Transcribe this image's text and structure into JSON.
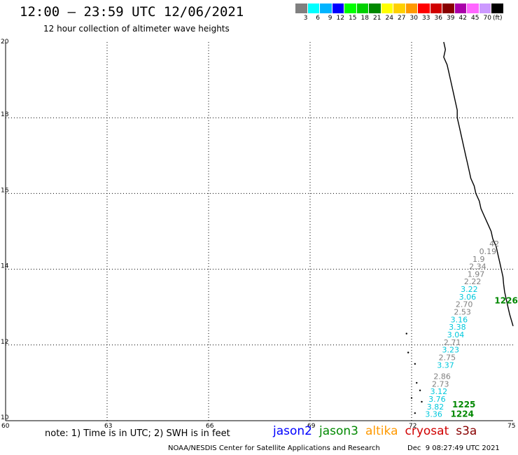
{
  "header": {
    "title": "12:00 – 23:59 UTC 12/06/2021",
    "subtitle": "12 hour collection of altimeter wave heights"
  },
  "colorbar": {
    "colors": [
      "#808080",
      "#00ffff",
      "#00b4ff",
      "#0000ff",
      "#00ff00",
      "#00d000",
      "#008800",
      "#ffff00",
      "#ffd000",
      "#ff9900",
      "#ff0000",
      "#d00000",
      "#880000",
      "#aa00aa",
      "#ff66ff",
      "#cc99ff",
      "#000000"
    ],
    "labels": [
      "3",
      "6",
      "9",
      "12",
      "15",
      "18",
      "21",
      "24",
      "27",
      "30",
      "33",
      "36",
      "39",
      "42",
      "45",
      "70"
    ],
    "unit": "(ft)"
  },
  "map": {
    "lon_ticks": [
      "60",
      "63",
      "66",
      "69",
      "72",
      "75"
    ],
    "lat_ticks": [
      "20",
      "18",
      "16",
      "14",
      "12",
      "10"
    ],
    "grid": "dotted",
    "wave_labels": [
      {
        "text": "42",
        "lon": 74.3,
        "lat": 14.6,
        "color": "#808080"
      },
      {
        "text": "0.19",
        "lon": 74.0,
        "lat": 14.4,
        "color": "#808080"
      },
      {
        "text": "1.9",
        "lon": 73.8,
        "lat": 14.2,
        "color": "#808080"
      },
      {
        "text": "2.34",
        "lon": 73.7,
        "lat": 14.0,
        "color": "#808080"
      },
      {
        "text": "1.97",
        "lon": 73.65,
        "lat": 13.8,
        "color": "#808080"
      },
      {
        "text": "2.22",
        "lon": 73.55,
        "lat": 13.6,
        "color": "#808080"
      },
      {
        "text": "3.22",
        "lon": 73.45,
        "lat": 13.4,
        "color": "#00c8dc"
      },
      {
        "text": "3.06",
        "lon": 73.4,
        "lat": 13.2,
        "color": "#00c8dc"
      },
      {
        "text": "2.70",
        "lon": 73.3,
        "lat": 13.0,
        "color": "#808080"
      },
      {
        "text": "2.53",
        "lon": 73.25,
        "lat": 12.8,
        "color": "#808080"
      },
      {
        "text": "3.16",
        "lon": 73.15,
        "lat": 12.6,
        "color": "#00c8dc"
      },
      {
        "text": "3.38",
        "lon": 73.1,
        "lat": 12.4,
        "color": "#00c8dc"
      },
      {
        "text": "3.04",
        "lon": 73.05,
        "lat": 12.2,
        "color": "#00c8dc"
      },
      {
        "text": "2.71",
        "lon": 72.95,
        "lat": 12.0,
        "color": "#808080"
      },
      {
        "text": "3.23",
        "lon": 72.9,
        "lat": 11.8,
        "color": "#00c8dc"
      },
      {
        "text": "2.75",
        "lon": 72.8,
        "lat": 11.6,
        "color": "#808080"
      },
      {
        "text": "3.37",
        "lon": 72.75,
        "lat": 11.4,
        "color": "#00c8dc"
      },
      {
        "text": "2.86",
        "lon": 72.65,
        "lat": 11.1,
        "color": "#808080"
      },
      {
        "text": "2.73",
        "lon": 72.6,
        "lat": 10.9,
        "color": "#808080"
      },
      {
        "text": "3.12",
        "lon": 72.55,
        "lat": 10.7,
        "color": "#00c8dc"
      },
      {
        "text": "3.76",
        "lon": 72.5,
        "lat": 10.5,
        "color": "#00c8dc"
      },
      {
        "text": "3.82",
        "lon": 72.45,
        "lat": 10.3,
        "color": "#00c8dc"
      },
      {
        "text": "3.36",
        "lon": 72.4,
        "lat": 10.1,
        "color": "#00c8dc"
      }
    ],
    "time_labels": [
      {
        "text": "1226",
        "lon": 74.45,
        "lat": 13.1,
        "color": "#008800"
      },
      {
        "text": "1225",
        "lon": 73.2,
        "lat": 10.35,
        "color": "#008800"
      },
      {
        "text": "1224",
        "lon": 73.15,
        "lat": 10.1,
        "color": "#008800"
      }
    ]
  },
  "footer": {
    "note": "note: 1) Time is in UTC; 2) SWH is in feet",
    "satellites": [
      {
        "name": "jason2",
        "color": "#0000ff"
      },
      {
        "name": "jason3",
        "color": "#008800"
      },
      {
        "name": "altika",
        "color": "#ff9900"
      },
      {
        "name": "cryosat",
        "color": "#d00000"
      },
      {
        "name": "s3a",
        "color": "#880000"
      }
    ],
    "credit": "NOAA/NESDIS Center for Satellite Applications and Research",
    "timestamp": "Dec  9 08:27:49 UTC 2021"
  }
}
